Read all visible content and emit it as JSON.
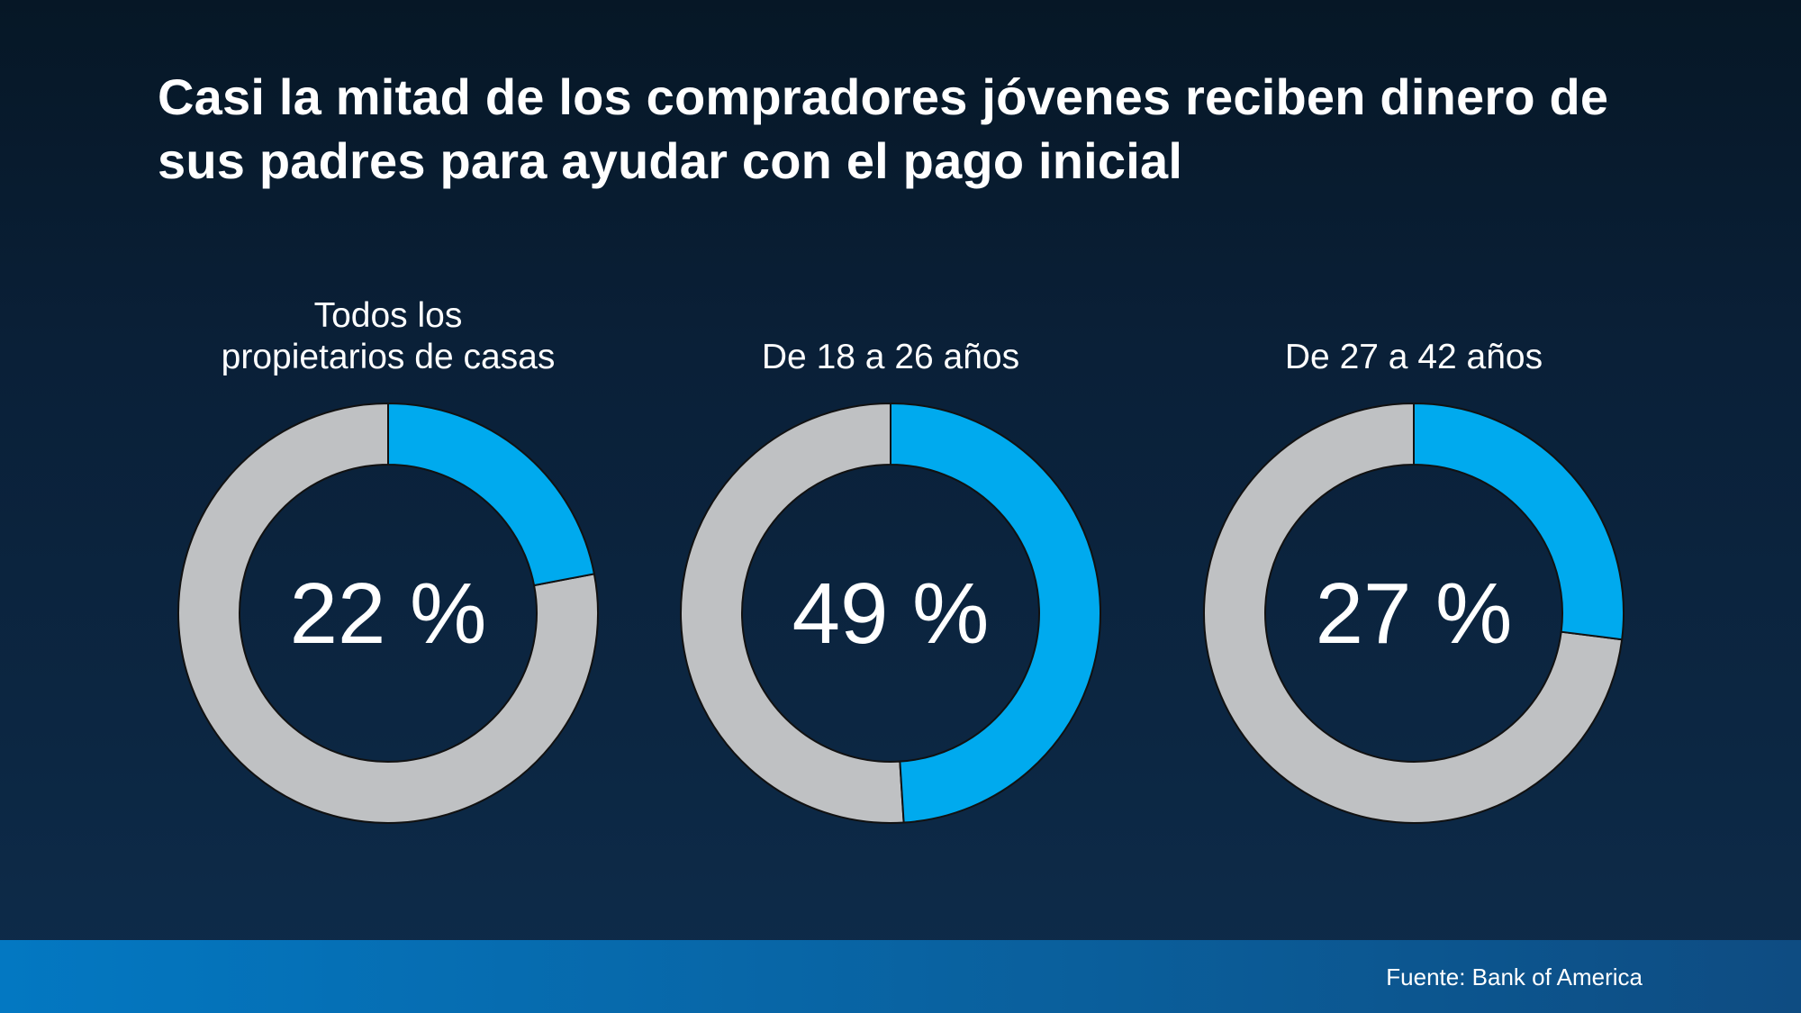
{
  "title": "Casi la mitad de los compradores jóvenes reciben dinero de sus padres para ayudar con el pago inicial",
  "source": "Fuente: Bank of America",
  "colors": {
    "highlight": "#00aaee",
    "remainder": "#bfc1c3",
    "outline": "#111111"
  },
  "chart_data": {
    "type": "pie",
    "style": "donut",
    "title": "Casi la mitad de los compradores jóvenes reciben dinero de sus padres para ayudar con el pago inicial",
    "charts": [
      {
        "label_lines": [
          "Todos los",
          "propietarios de casas"
        ],
        "value": 22,
        "display": "22 %"
      },
      {
        "label_lines": [
          "De 18 a 26 años"
        ],
        "value": 49,
        "display": "49 %"
      },
      {
        "label_lines": [
          "De 27 a 42 años"
        ],
        "value": 27,
        "display": "27 %"
      }
    ]
  }
}
